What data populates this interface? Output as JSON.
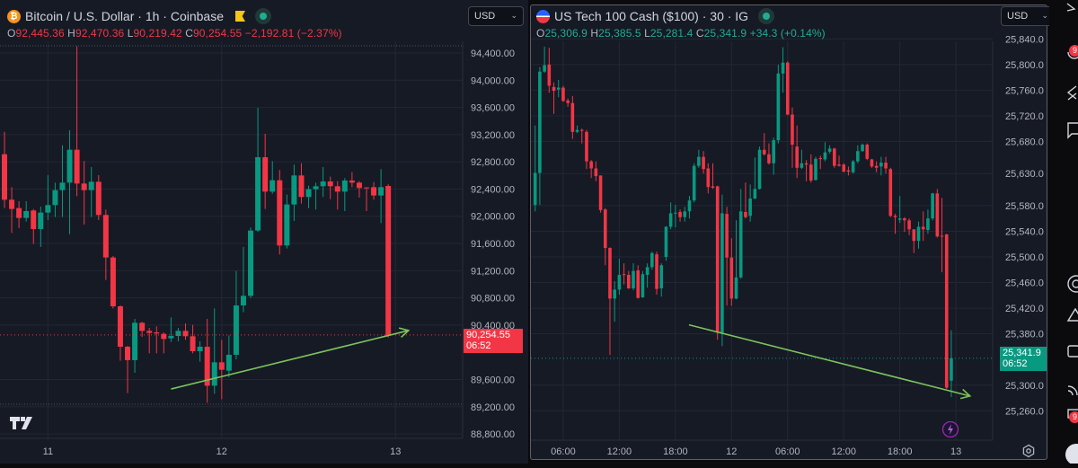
{
  "colors": {
    "up": "#089981",
    "down": "#f23645",
    "trendline": "#7cc35b",
    "grid": "#232735",
    "axis_text": "#b2b5be",
    "btc_icon": "#f7931a"
  },
  "btc": {
    "title": "Bitcoin / U.S. Dollar · 1h · Coinbase",
    "icon": "bitcoin-icon",
    "currency": "USD",
    "ohlc": {
      "o_label": "O",
      "o": "92,445.36",
      "h_label": "H",
      "h": "92,470.36",
      "l_label": "L",
      "l": "90,219.42",
      "c_label": "C",
      "c": "90,254.55",
      "change": "−2,192.81 (−2.37%)"
    },
    "price_label": "90,254.55",
    "countdown": "06:52",
    "price_ticks": [
      "94,400.00",
      "94,000.00",
      "93,600.00",
      "93,200.00",
      "92,800.00",
      "92,400.00",
      "92,000.00",
      "91,600.00",
      "91,200.00",
      "90,800.00",
      "90,400.00",
      "89,600.00",
      "89,200.00",
      "88,800.00"
    ],
    "time_ticks": [
      "11",
      "12",
      "13"
    ],
    "trendline": [
      {
        "bar": 23,
        "price": 89460
      },
      {
        "bar": 55.8,
        "price": 90320
      }
    ],
    "candles": [
      [
        92912,
        93242,
        92120,
        92243
      ],
      [
        92243,
        92428,
        91755,
        92107
      ],
      [
        92120,
        92221,
        91825,
        91975
      ],
      [
        91975,
        92221,
        91922,
        92076
      ],
      [
        92085,
        92107,
        91592,
        91812
      ],
      [
        91812,
        92142,
        91548,
        92054
      ],
      [
        92054,
        92604,
        91944,
        92164
      ],
      [
        92164,
        92494,
        91988,
        92384
      ],
      [
        92384,
        93044,
        91988,
        92494
      ],
      [
        92494,
        93264,
        91737,
        92978
      ],
      [
        92978,
        94497,
        92296,
        92481
      ],
      [
        92481,
        92811,
        91878,
        92384
      ],
      [
        92384,
        92723,
        91988,
        92507
      ],
      [
        92507,
        92604,
        91944,
        92019
      ],
      [
        92019,
        92098,
        91063,
        91394
      ],
      [
        91394,
        91416,
        90645,
        90676
      ],
      [
        90676,
        90689,
        89875,
        90082
      ],
      [
        90082,
        90095,
        89400,
        89884
      ],
      [
        89884,
        90491,
        89699,
        90434
      ],
      [
        90434,
        90447,
        90227,
        90315
      ],
      [
        90315,
        90359,
        89985,
        90284
      ],
      [
        90293,
        90381,
        89985,
        90276
      ],
      [
        90271,
        90293,
        89985,
        90196
      ],
      [
        90205,
        90513,
        90152,
        90240
      ],
      [
        90240,
        90359,
        90161,
        90315
      ],
      [
        90315,
        90425,
        90183,
        90236
      ],
      [
        90236,
        90403,
        89985,
        90016
      ],
      [
        90016,
        90161,
        89862,
        90082
      ],
      [
        90082,
        90491,
        89259,
        89509
      ],
      [
        89509,
        90645,
        89391,
        89853
      ],
      [
        89853,
        90183,
        89311,
        89743
      ],
      [
        89730,
        90249,
        89633,
        89963
      ],
      [
        89963,
        91196,
        89897,
        90689
      ],
      [
        90689,
        91548,
        90588,
        90830
      ],
      [
        90830,
        91834,
        90799,
        91790
      ],
      [
        91790,
        93595,
        91768,
        92868
      ],
      [
        92868,
        93212,
        92107,
        92362
      ],
      [
        92362,
        92811,
        92331,
        92529
      ],
      [
        92529,
        92679,
        91438,
        91570
      ],
      [
        91570,
        92318,
        91526,
        92173
      ],
      [
        92173,
        92758,
        91931,
        92600
      ],
      [
        92600,
        92780,
        92186,
        92283
      ],
      [
        92283,
        92450,
        92120,
        92397
      ],
      [
        92397,
        92494,
        92098,
        92441
      ],
      [
        92441,
        92723,
        92283,
        92512
      ],
      [
        92512,
        92582,
        92252,
        92441
      ],
      [
        92441,
        92516,
        92098,
        92362
      ],
      [
        92362,
        92560,
        92076,
        92525
      ],
      [
        92525,
        92648,
        92428,
        92494
      ],
      [
        92494,
        92516,
        92274,
        92415
      ],
      [
        92424,
        92428,
        92076,
        92415
      ],
      [
        92428,
        92503,
        92243,
        92305
      ],
      [
        92305,
        92692,
        91900,
        92428
      ],
      [
        92445.36,
        92470.36,
        90219.42,
        90254.55
      ]
    ]
  },
  "ndx": {
    "title": "US Tech 100 Cash ($100) · 30 · IG",
    "icon": "us-flag-icon",
    "currency": "USD",
    "ohlc": {
      "o_label": "O",
      "o": "25,306.9",
      "h_label": "H",
      "h": "25,385.5",
      "l_label": "L",
      "l": "25,281.4",
      "c_label": "C",
      "c": "25,341.9",
      "change": "+34.3 (+0.14%)"
    },
    "price_label": "25,341.9",
    "countdown": "06:52",
    "price_ticks": [
      "25,840.0",
      "25,800.0",
      "25,760.0",
      "25,720.0",
      "25,680.0",
      "25,630.0",
      "25,580.0",
      "25,540.0",
      "25,500.0",
      "25,460.0",
      "25,420.0",
      "25,380.0",
      "25,300.0",
      "25,260.0"
    ],
    "time_ticks": [
      "06:00",
      "12:00",
      "18:00",
      "12",
      "06:00",
      "12:00",
      "18:00",
      "13"
    ],
    "trendline": [
      {
        "bar": 32.9,
        "price": 25394
      },
      {
        "bar": 93,
        "price": 25283
      }
    ],
    "candles": [
      [
        25581,
        25705,
        25571,
        25631
      ],
      [
        25631,
        25796,
        25581,
        25789
      ],
      [
        25789,
        25828,
        25787,
        25799
      ],
      [
        25800,
        25826,
        25756,
        25767
      ],
      [
        25765,
        25772,
        25723,
        25759
      ],
      [
        25761,
        25776,
        25749,
        25764
      ],
      [
        25764,
        25767,
        25742,
        25743
      ],
      [
        25744,
        25747,
        25734,
        25740
      ],
      [
        25740,
        25751,
        25684,
        25695
      ],
      [
        25695,
        25705,
        25693,
        25698
      ],
      [
        25698,
        25700,
        25677,
        25697
      ],
      [
        25695,
        25698,
        25637,
        25649
      ],
      [
        25649,
        25651,
        25623,
        25638
      ],
      [
        25638,
        25649,
        25618,
        25626
      ],
      [
        25627,
        25627,
        25569,
        25573
      ],
      [
        25574,
        25576,
        25487,
        25514
      ],
      [
        25514,
        25515,
        25347,
        25435
      ],
      [
        25435,
        25462,
        25399,
        25449
      ],
      [
        25449,
        25497,
        25441,
        25472
      ],
      [
        25473,
        25490,
        25457,
        25472
      ],
      [
        25472,
        25478,
        25450,
        25451
      ],
      [
        25451,
        25490,
        25448,
        25478
      ],
      [
        25479,
        25487,
        25435,
        25436
      ],
      [
        25437,
        25478,
        25436,
        25473
      ],
      [
        25472,
        25490,
        25452,
        25484
      ],
      [
        25484,
        25508,
        25480,
        25506
      ],
      [
        25504,
        25508,
        25441,
        25450
      ],
      [
        25451,
        25490,
        25438,
        25487
      ],
      [
        25500,
        25548,
        25494,
        25547
      ],
      [
        25547,
        25585,
        25543,
        25568
      ],
      [
        25568,
        25581,
        25546,
        25569
      ],
      [
        25570,
        25574,
        25555,
        25562
      ],
      [
        25562,
        25578,
        25555,
        25571
      ],
      [
        25571,
        25595,
        25560,
        25588
      ],
      [
        25588,
        25646,
        25585,
        25642
      ],
      [
        25642,
        25667,
        25639,
        25656
      ],
      [
        25656,
        25665,
        25630,
        25637
      ],
      [
        25638,
        25646,
        25599,
        25609
      ],
      [
        25610,
        25646,
        25606,
        25608
      ],
      [
        25610,
        25611,
        25371,
        25382
      ],
      [
        25382,
        25597,
        25361,
        25568
      ],
      [
        25567,
        25578,
        25424,
        25499
      ],
      [
        25499,
        25529,
        25424,
        25435
      ],
      [
        25435,
        25557,
        25434,
        25468
      ],
      [
        25468,
        25606,
        25466,
        25571
      ],
      [
        25570,
        25616,
        25560,
        25562
      ],
      [
        25564,
        25613,
        25555,
        25591
      ],
      [
        25591,
        25655,
        25590,
        25606
      ],
      [
        25606,
        25672,
        25605,
        25667
      ],
      [
        25667,
        25693,
        25658,
        25660
      ],
      [
        25660,
        25677,
        25644,
        25646
      ],
      [
        25646,
        25686,
        25628,
        25682
      ],
      [
        25682,
        25800,
        25677,
        25786
      ],
      [
        25786,
        25827,
        25756,
        25803
      ],
      [
        25803,
        25805,
        25721,
        25722
      ],
      [
        25722,
        25733,
        25639,
        25675
      ],
      [
        25672,
        25705,
        25623,
        25639
      ],
      [
        25639,
        25667,
        25637,
        25646
      ],
      [
        25646,
        25651,
        25618,
        25644
      ],
      [
        25644,
        25660,
        25616,
        25619
      ],
      [
        25620,
        25656,
        25619,
        25653
      ],
      [
        25654,
        25658,
        25637,
        25653
      ],
      [
        25652,
        25679,
        25649,
        25663
      ],
      [
        25664,
        25674,
        25661,
        25669
      ],
      [
        25669,
        25670,
        25639,
        25642
      ],
      [
        25644,
        25658,
        25641,
        25642
      ],
      [
        25644,
        25646,
        25632,
        25633
      ],
      [
        25635,
        25641,
        25627,
        25633
      ],
      [
        25632,
        25651,
        25630,
        25649
      ],
      [
        25649,
        25674,
        25646,
        25665
      ],
      [
        25665,
        25677,
        25664,
        25675
      ],
      [
        25675,
        25677,
        25651,
        25653
      ],
      [
        25652,
        25653,
        25639,
        25641
      ],
      [
        25642,
        25649,
        25632,
        25639
      ],
      [
        25641,
        25656,
        25627,
        25647
      ],
      [
        25647,
        25656,
        25630,
        25638
      ],
      [
        25637,
        25639,
        25562,
        25564
      ],
      [
        25564,
        25567,
        25536,
        25562
      ],
      [
        25558,
        25595,
        25553,
        25560
      ],
      [
        25560,
        25562,
        25539,
        25557
      ],
      [
        25557,
        25560,
        25534,
        25543
      ],
      [
        25543,
        25543,
        25506,
        25525
      ],
      [
        25525,
        25555,
        25513,
        25547
      ],
      [
        25547,
        25571,
        25525,
        25543
      ],
      [
        25542,
        25574,
        25536,
        25560
      ],
      [
        25560,
        25600,
        25557,
        25599
      ],
      [
        25599,
        25606,
        25530,
        25532
      ],
      [
        25533,
        25592,
        25476,
        25532
      ],
      [
        25535,
        25536,
        25294,
        25296
      ],
      [
        25306.9,
        25385.5,
        25281.4,
        25341.9
      ]
    ]
  },
  "sidebar": {
    "badges": [
      "9",
      "9"
    ]
  }
}
